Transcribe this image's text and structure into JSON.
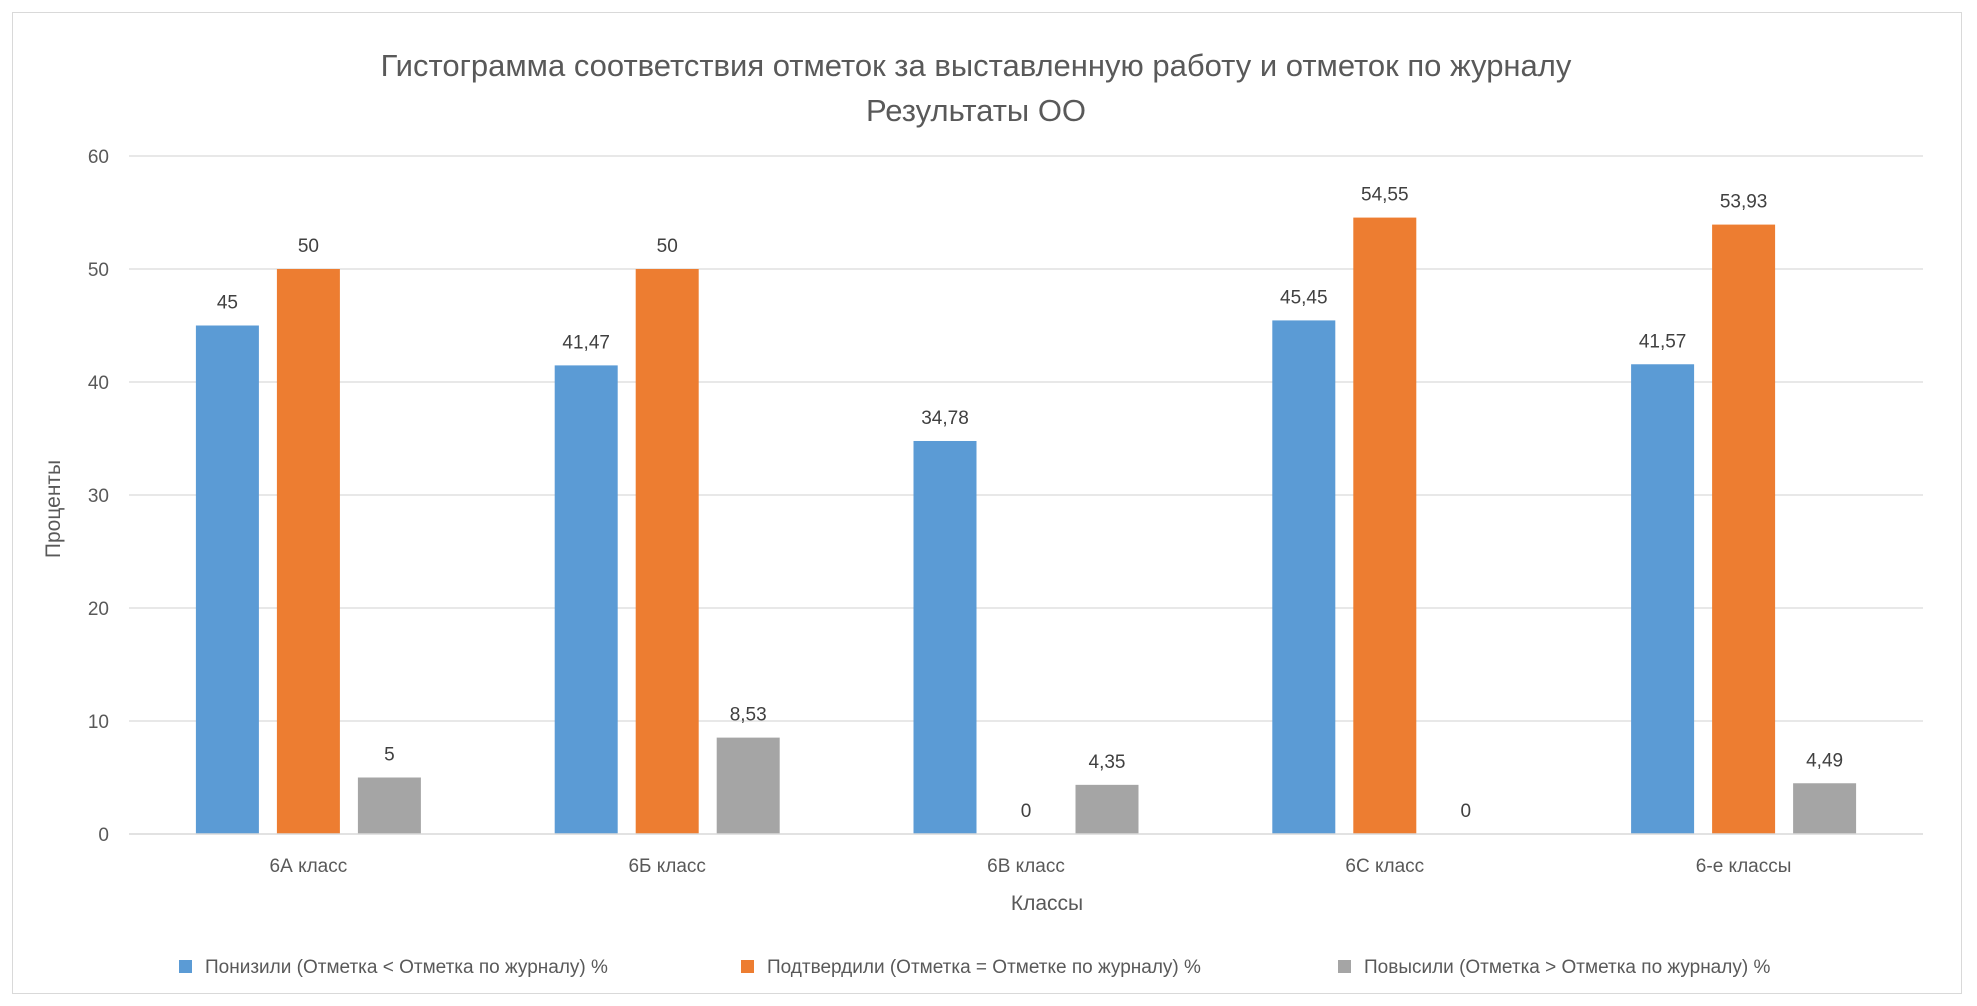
{
  "chart_data": {
    "type": "bar",
    "title": "Гистограмма соответствия отметок за выставленную работу и отметок по журналу",
    "subtitle": "Результаты ОО",
    "xlabel": "Классы",
    "ylabel": "Проценты",
    "ylim": [
      0,
      60
    ],
    "yticks": [
      "0",
      "10",
      "20",
      "30",
      "40",
      "50",
      "60"
    ],
    "categories": [
      "6А класс",
      "6Б класс",
      "6В класс",
      "6С класс",
      "6-е классы"
    ],
    "grid": true,
    "legend_position": "bottom",
    "series": [
      {
        "name": "Понизили (Отметка < Отметка по журналу) %",
        "color": "#5b9bd5",
        "values": [
          45,
          41.47,
          34.78,
          45.45,
          41.57
        ],
        "labels": [
          "45",
          "41,47",
          "34,78",
          "45,45",
          "41,57"
        ]
      },
      {
        "name": "Подтвердили (Отметка = Отметке по журналу) %",
        "color": "#ed7d31",
        "values": [
          50,
          50,
          0,
          54.55,
          53.93
        ],
        "labels": [
          "50",
          "50",
          "0",
          "54,55",
          "53,93"
        ]
      },
      {
        "name": "Повысили (Отметка > Отметка по журналу) %",
        "color": "#a5a5a5",
        "values": [
          5,
          8.53,
          4.35,
          0,
          4.49
        ],
        "labels": [
          "5",
          "8,53",
          "4,35",
          "0",
          "4,49"
        ]
      }
    ]
  }
}
